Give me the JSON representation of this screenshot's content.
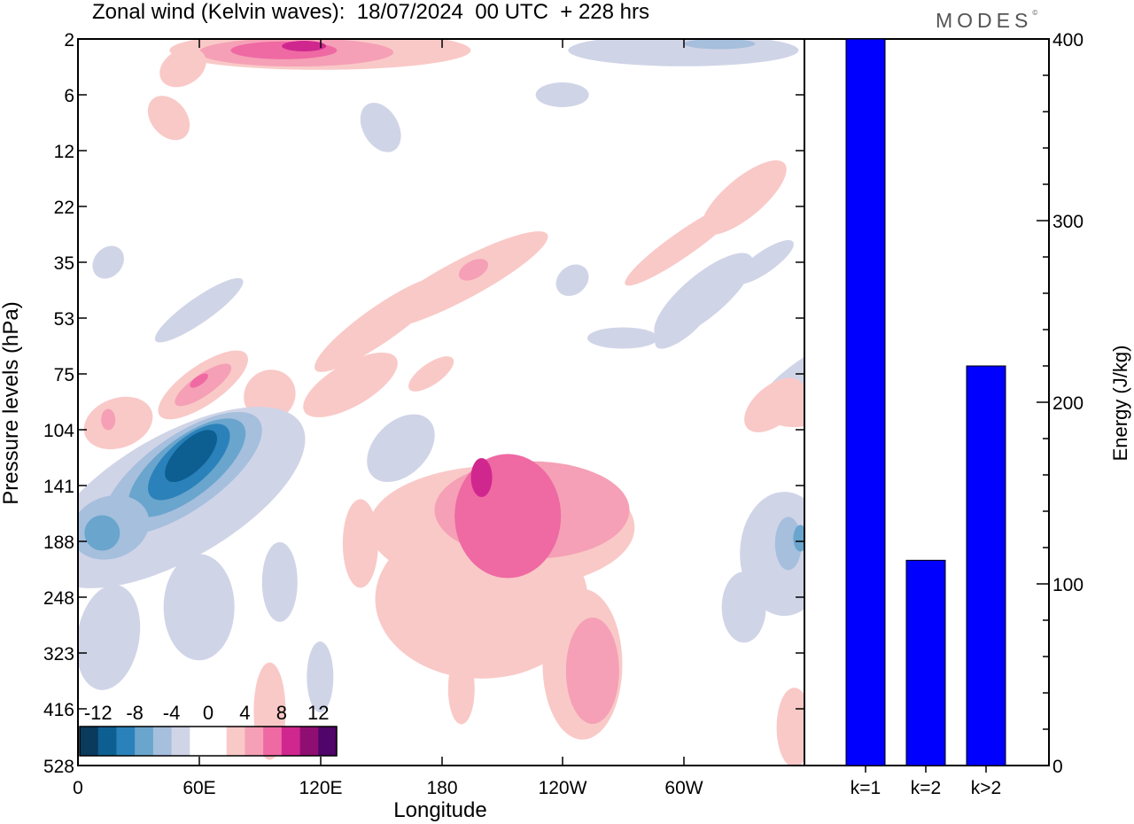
{
  "title": "Zonal wind (Kelvin waves):  18/07/2024  00 UTC  + 228 hrs",
  "brand": "MODES",
  "brand_mark": "©",
  "colors": {
    "contour_fill": [
      "#0a3a5c",
      "#0d5f91",
      "#2b82ba",
      "#6aa5cd",
      "#a5bfdd",
      "#d0d4e7",
      "#ffffff",
      "#ffffff",
      "#f9c9c7",
      "#f5a0b6",
      "#ef69a3",
      "#d0278f",
      "#8f0e72",
      "#4f0569"
    ],
    "bar": "#0000ff",
    "frame": "#000000"
  },
  "chart_data": [
    {
      "type": "heatmap",
      "title": "Zonal wind (Kelvin waves):  18/07/2024  00 UTC  + 228 hrs",
      "xlabel": "Longitude",
      "ylabel": "Pressure levels (hPa)",
      "x_ticks": [
        "0",
        "60E",
        "120E",
        "180",
        "120W",
        "60W"
      ],
      "y_ticks": [
        "2",
        "6",
        "12",
        "22",
        "35",
        "53",
        "75",
        "104",
        "141",
        "188",
        "248",
        "323",
        "416",
        "528"
      ],
      "colorbar": {
        "levels": [
          -12,
          -8,
          -4,
          0,
          4,
          8,
          12
        ],
        "labels": [
          "-12",
          "-8",
          "-4",
          "0",
          "4",
          "8",
          "12"
        ]
      },
      "features": [
        {
          "sign": "negative",
          "lon": 55,
          "level": 125,
          "peak": -14
        },
        {
          "sign": "negative",
          "lon": 15,
          "level": 170,
          "peak": -9
        },
        {
          "sign": "negative",
          "lon": 350,
          "level": 185,
          "peak": -9
        },
        {
          "sign": "positive",
          "lon": 220,
          "level": 160,
          "peak": 9
        },
        {
          "sign": "positive",
          "lon": 255,
          "level": 340,
          "peak": 6
        },
        {
          "sign": "positive",
          "lon": 105,
          "level": 2,
          "peak": 9
        },
        {
          "sign": "negative",
          "lon": 310,
          "level": 2,
          "peak": -8
        },
        {
          "sign": "positive",
          "lon": 62,
          "level": 80,
          "peak": 7
        }
      ]
    },
    {
      "type": "bar",
      "categories": [
        "k=1",
        "k=2",
        "k>2"
      ],
      "values": [
        400,
        113,
        220
      ],
      "ylabel": "Energy (J/kg)",
      "ylim": [
        0,
        400
      ],
      "y_ticks": [
        "0",
        "100",
        "200",
        "300",
        "400"
      ]
    }
  ]
}
